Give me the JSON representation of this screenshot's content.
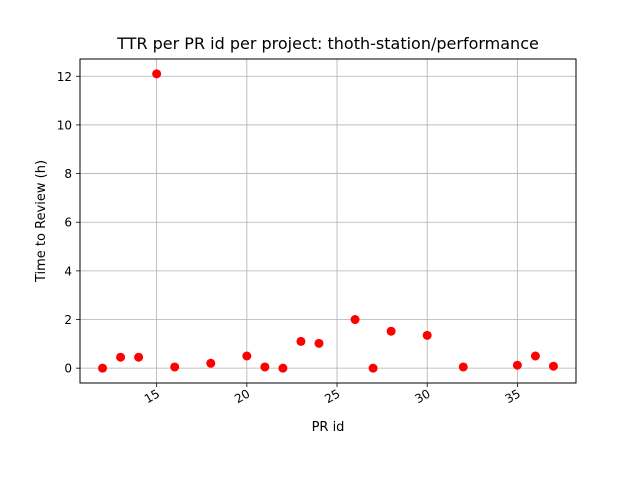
{
  "chart_data": {
    "type": "scatter",
    "title": "TTR per PR id per project: thoth-station/performance",
    "xlabel": "PR id",
    "ylabel": "Time to Review (h)",
    "xlim": [
      10.75,
      38.25
    ],
    "ylim": [
      -0.61,
      12.71
    ],
    "x_ticks": [
      15,
      20,
      25,
      30,
      35
    ],
    "y_ticks": [
      0,
      2,
      4,
      6,
      8,
      10,
      12
    ],
    "grid": true,
    "marker_color": "#ff0000",
    "series": [
      {
        "x": [
          12,
          13,
          14,
          15,
          16,
          18,
          20,
          21,
          22,
          23,
          24,
          26,
          27,
          28,
          30,
          32,
          35,
          36,
          37
        ],
        "y": [
          0.0,
          0.45,
          0.45,
          12.1,
          0.05,
          0.2,
          0.5,
          0.05,
          0.0,
          1.1,
          1.02,
          2.0,
          0.0,
          1.52,
          1.35,
          0.05,
          0.12,
          0.5,
          0.08
        ]
      }
    ]
  }
}
